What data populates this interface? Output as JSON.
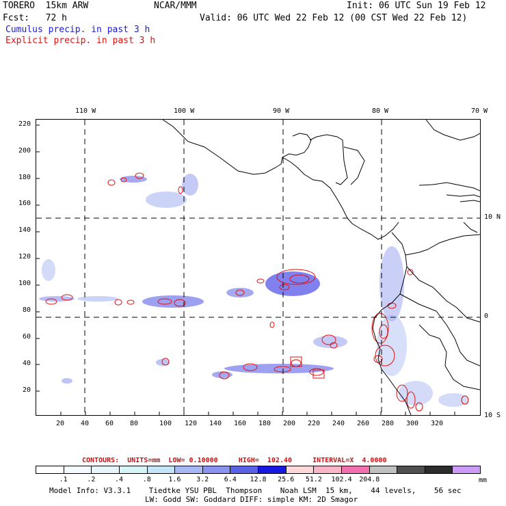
{
  "header": {
    "model": "TORERO  15km ARW",
    "org": "NCAR/MMM",
    "init": "Init: 06 UTC Sun 19 Feb 12",
    "fcst": "Fcst:   72 h",
    "valid": "Valid: 06 UTC Wed 22 Feb 12 (00 CST Wed 22 Feb 12)",
    "legend_cumulus": "Cumulus precip. in past 3 h",
    "legend_explicit": "Explicit precip. in past 3 h"
  },
  "axes": {
    "top_lon": [
      "110 W",
      "100 W",
      "90 W",
      "80 W",
      "70 W"
    ],
    "right_lat": [
      "10 N",
      "0",
      "10 S"
    ],
    "left_y": [
      "220",
      "200",
      "180",
      "160",
      "140",
      "120",
      "100",
      "80",
      "60",
      "40",
      "20"
    ],
    "bottom_x": [
      "20",
      "40",
      "60",
      "80",
      "100",
      "120",
      "140",
      "160",
      "180",
      "200",
      "220",
      "240",
      "260",
      "280",
      "300",
      "320"
    ]
  },
  "contour_info": "CONTOURS:  UNITS=mm  LOW= 0.10000     HIGH=  102.40     INTERVAL=X  4.0000",
  "colorbar": {
    "colors": [
      "#ffffff",
      "#f4fbff",
      "#e6f6fb",
      "#d6f4f6",
      "#c6e4f7",
      "#a8b8f2",
      "#8a94ee",
      "#5c62e4",
      "#1818e0",
      "#ffd8da",
      "#f8b6c8",
      "#f070b0",
      "#c0c0c0",
      "#505050",
      "#2c2c2c",
      "#cc9cf8"
    ],
    "labels": [
      ".1",
      ".2",
      ".4",
      ".8",
      "1.6",
      "3.2",
      "6.4",
      "12.8",
      "25.6",
      "51.2",
      "102.4",
      "204.8"
    ],
    "units": "mm"
  },
  "footer": {
    "line1": "Model Info: V3.3.1    Tiedtke YSU PBL  Thompson    Noah LSM  15 km,    44 levels,    56 sec",
    "line2": "LW: Godd SW: Goddard DIFF: simple KM: 2D Smagor"
  },
  "colors": {
    "cumulus": "#1a1ad8",
    "explicit": "#e01010",
    "grid": "#000000"
  }
}
